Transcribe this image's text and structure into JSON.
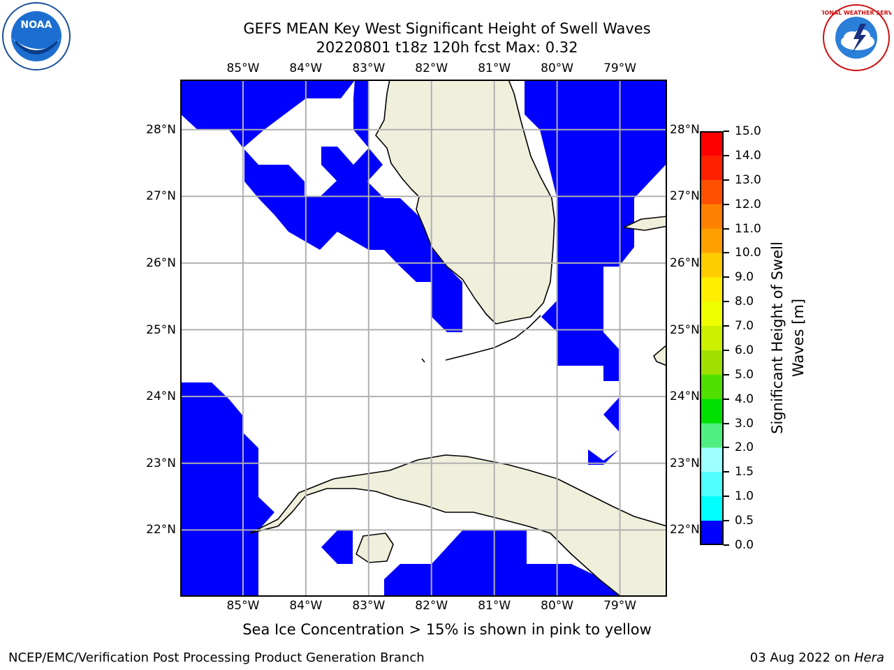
{
  "title": {
    "line1": "GEFS MEAN Key West Significant Height of Swell Waves",
    "line2": "20220801 t18z 120h fcst   Max: 0.32"
  },
  "map": {
    "lon_ticks": [
      "85°W",
      "84°W",
      "83°W",
      "82°W",
      "81°W",
      "80°W",
      "79°W"
    ],
    "lat_ticks": [
      "28°N",
      "27°N",
      "26°N",
      "25°N",
      "24°N",
      "23°N",
      "22°N"
    ],
    "lon_values": [
      -85,
      -84,
      -83,
      -82,
      -81,
      -80,
      -79
    ],
    "lat_values": [
      28,
      27,
      26,
      25,
      24,
      23,
      22
    ],
    "extent": {
      "lon_min": -86.0,
      "lon_max": -78.25,
      "lat_min": 21.0,
      "lat_max": 28.75
    },
    "land_color": "#efefdc",
    "wave_color": "#0000ff",
    "grid_color": "#b0b0b0",
    "swell_cells_0_to_0p5": "areas where wave height is between 0.0 and 0.5 m shown in blue"
  },
  "colorbar": {
    "label": "Significant Height of Swell Waves [m]",
    "label_line1": "Significant Height of Swell",
    "label_line2": "Waves [m]",
    "ticks": [
      "15.0",
      "14.0",
      "13.0",
      "12.0",
      "11.0",
      "10.0",
      "9.0",
      "8.0",
      "7.0",
      "6.0",
      "5.0",
      "4.0",
      "3.0",
      "2.0",
      "1.5",
      "1.0",
      "0.5",
      "0.0"
    ],
    "colors": [
      "#ff0000",
      "#ff2000",
      "#ff5000",
      "#ff8000",
      "#ffa000",
      "#ffcc00",
      "#ffee00",
      "#f0ff00",
      "#ccf000",
      "#a0e000",
      "#50e000",
      "#00e000",
      "#50f080",
      "#a0ffff",
      "#50ffff",
      "#00ffff",
      "#0070ff",
      "#0000ff"
    ]
  },
  "note": "Sea Ice Concentration > 15% is shown in pink to yellow",
  "footer": {
    "left": "NCEP/EMC/Verification Post Processing Product Generation Branch",
    "date": "03 Aug 2022 on ",
    "host": "Hera"
  },
  "logos": {
    "left": "NOAA",
    "right": "NATIONAL WEATHER SERVICE"
  }
}
